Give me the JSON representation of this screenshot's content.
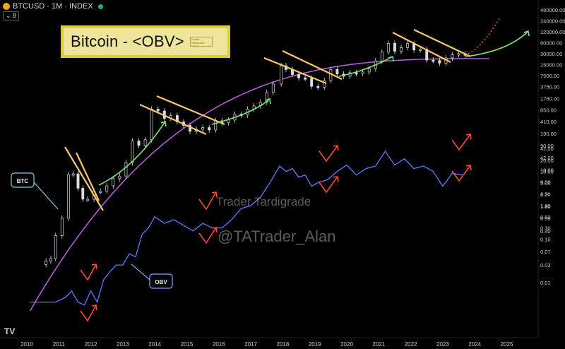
{
  "header": {
    "symbol": "BTCUSD · 1M · INDEX",
    "badge": "8"
  },
  "title_box": {
    "title": "Bitcoin - <OBV>",
    "mini_label": "Trader Tardigrade @TATrader_Alan"
  },
  "watermarks": [
    "Trader Tardigrade",
    "@TATrader_Alan"
  ],
  "labels": {
    "btc": "BTC",
    "obv": "OBV"
  },
  "brand": "TV",
  "colors": {
    "candle_up": "#26a69a",
    "candle_down": "#ef5350",
    "obv": "#5b7cff",
    "curve": "#b45cd6",
    "trend": "#f5c76a",
    "arrow_green": "#7ce07a",
    "arrow_red": "#ff4a2e",
    "label_btc": "#7fd0e6",
    "label_obv": "#8aa4ff"
  },
  "chart_data": {
    "type": "line",
    "x_axis": {
      "ticks": [
        "2010",
        "2011",
        "2012",
        "2013",
        "2014",
        "2015",
        "2016",
        "2017",
        "2018",
        "2019",
        "2020",
        "2021",
        "2022",
        "2023",
        "2024",
        "2025"
      ]
    },
    "y_axis": {
      "scale": "log",
      "price_ticks": [
        "480000.00",
        "240000.00",
        "120000.00",
        "60000.00",
        "30000.00",
        "15000.00",
        "7500.00",
        "3750.00",
        "1750.00",
        "850.00",
        "410.00",
        "190.00",
        "90.00",
        "42.00",
        "19.00",
        "9.00",
        "4.20",
        "1.90",
        "0.90",
        "0.40"
      ],
      "obv_ticks": [
        "42.00",
        "20.00",
        "10.00",
        "5.00",
        "2.50",
        "1.20",
        "0.60",
        "0.30",
        "0.15",
        "0.07",
        "0.03",
        "0.01"
      ]
    },
    "series": [
      {
        "name": "BTC",
        "type": "candles",
        "x": [
          2010.6,
          2010.75,
          2010.9,
          2011.1,
          2011.3,
          2011.45,
          2011.6,
          2011.75,
          2011.9,
          2012.1,
          2012.3,
          2012.5,
          2012.7,
          2012.9,
          2013.1,
          2013.3,
          2013.5,
          2013.7,
          2013.9,
          2014.1,
          2014.3,
          2014.5,
          2014.7,
          2014.9,
          2015.1,
          2015.3,
          2015.5,
          2015.7,
          2015.9,
          2016.1,
          2016.3,
          2016.5,
          2016.7,
          2016.9,
          2017.1,
          2017.3,
          2017.5,
          2017.7,
          2017.95,
          2018.1,
          2018.3,
          2018.5,
          2018.7,
          2018.9,
          2019.1,
          2019.3,
          2019.5,
          2019.7,
          2019.9,
          2020.1,
          2020.3,
          2020.5,
          2020.7,
          2020.9,
          2021.1,
          2021.3,
          2021.5,
          2021.7,
          2021.9,
          2022.1,
          2022.3,
          2022.5,
          2022.7,
          2022.9,
          2023.1,
          2023.3,
          2023.5,
          2023.7
        ],
        "values": [
          0.06,
          0.07,
          0.3,
          0.9,
          14,
          15,
          6,
          3,
          3,
          5,
          5,
          7,
          11,
          13,
          30,
          120,
          90,
          130,
          900,
          800,
          500,
          600,
          400,
          320,
          220,
          250,
          280,
          240,
          430,
          380,
          450,
          650,
          620,
          900,
          1100,
          1400,
          2600,
          4400,
          14000,
          11000,
          8000,
          6500,
          6300,
          3800,
          3600,
          5500,
          11000,
          8300,
          7200,
          9000,
          8600,
          9400,
          11500,
          19000,
          33000,
          58000,
          35000,
          44000,
          57000,
          38000,
          40000,
          20000,
          19500,
          16500,
          23000,
          28000,
          30000,
          27000
        ]
      },
      {
        "name": "BTC projection",
        "type": "line",
        "x": [
          2023.8,
          2024.0,
          2024.2,
          2024.4,
          2024.6,
          2024.8
        ],
        "values": [
          30000,
          38000,
          55000,
          90000,
          160000,
          300000
        ]
      },
      {
        "name": "OBV",
        "type": "line",
        "x": [
          2010.1,
          2010.5,
          2010.9,
          2011.2,
          2011.4,
          2011.6,
          2011.8,
          2012.0,
          2012.2,
          2012.4,
          2012.6,
          2012.8,
          2013.0,
          2013.2,
          2013.4,
          2013.6,
          2013.8,
          2014.0,
          2014.3,
          2014.6,
          2014.9,
          2015.2,
          2015.5,
          2015.8,
          2016.1,
          2016.4,
          2016.7,
          2017.0,
          2017.3,
          2017.6,
          2017.9,
          2018.1,
          2018.3,
          2018.5,
          2018.7,
          2018.9,
          2019.1,
          2019.4,
          2019.7,
          2020.0,
          2020.3,
          2020.6,
          2020.9,
          2021.2,
          2021.5,
          2021.8,
          2022.1,
          2022.4,
          2022.7,
          2023.0,
          2023.3,
          2023.6
        ],
        "values": [
          0.003,
          0.003,
          0.003,
          0.004,
          0.006,
          0.003,
          0.0025,
          0.006,
          0.003,
          0.012,
          0.02,
          0.03,
          0.03,
          0.06,
          0.05,
          0.2,
          0.3,
          0.6,
          0.4,
          0.5,
          0.35,
          0.25,
          0.4,
          0.3,
          0.3,
          0.5,
          1.0,
          1.2,
          2.0,
          5.0,
          14,
          10,
          12,
          7,
          8,
          4,
          5,
          6,
          10,
          15,
          8,
          12,
          14,
          35,
          15,
          22,
          12,
          14,
          10,
          4,
          9,
          8
        ]
      }
    ]
  }
}
